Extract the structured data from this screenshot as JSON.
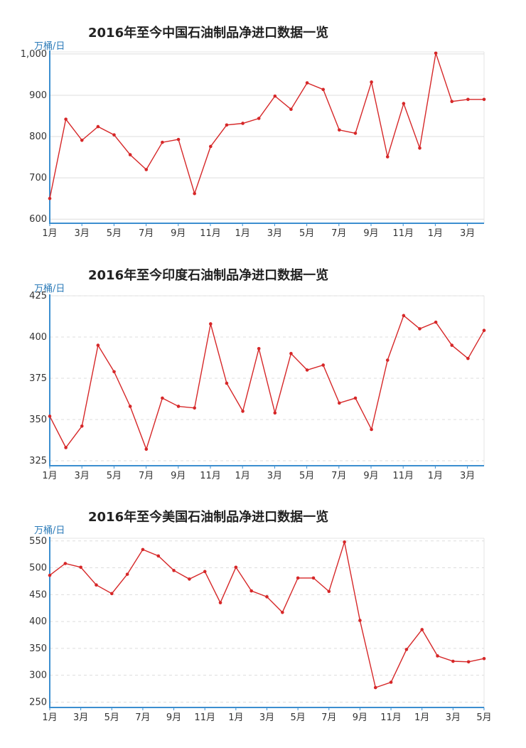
{
  "colors": {
    "line": "#d62728",
    "axis": "#3c8fd0",
    "grid": "#dddddd",
    "unit": "#2a7ab8"
  },
  "chart_data": [
    {
      "type": "line",
      "title": "2016年至今中国石油制品净进口数据一览",
      "ylabel": "万桶/日",
      "ylim": [
        590,
        1005
      ],
      "yticks": [
        600,
        700,
        800,
        900,
        1000
      ],
      "ytick_labels": [
        "600",
        "700",
        "800",
        "900",
        "1,000"
      ],
      "grid_style": "solid",
      "xtick_labels": [
        "1月",
        "3月",
        "5月",
        "7月",
        "9月",
        "11月",
        "1月",
        "3月",
        "5月",
        "7月",
        "9月",
        "11月",
        "1月",
        "3月"
      ],
      "values": [
        650,
        842,
        791,
        824,
        804,
        756,
        720,
        786,
        793,
        662,
        776,
        828,
        832,
        844,
        898,
        866,
        930,
        914,
        816,
        808,
        932,
        751,
        880,
        772,
        1002,
        885,
        890,
        890
      ]
    },
    {
      "type": "line",
      "title": "2016年至今印度石油制品净进口数据一览",
      "ylabel": "万桶/日",
      "ylim": [
        322,
        425
      ],
      "yticks": [
        325,
        350,
        375,
        400,
        425
      ],
      "ytick_labels": [
        "325",
        "350",
        "375",
        "400",
        "425"
      ],
      "grid_style": "dashed",
      "xtick_labels": [
        "1月",
        "3月",
        "5月",
        "7月",
        "9月",
        "11月",
        "1月",
        "3月",
        "5月",
        "7月",
        "9月",
        "11月",
        "1月",
        "3月"
      ],
      "values": [
        352,
        333,
        346,
        395,
        379,
        358,
        332,
        363,
        358,
        357,
        408,
        372,
        355,
        393,
        354,
        390,
        380,
        383,
        360,
        363,
        344,
        386,
        413,
        405,
        409,
        395,
        387,
        404
      ]
    },
    {
      "type": "line",
      "title": "2016年至今美国石油制品净进口数据一览",
      "ylabel": "万桶/日",
      "ylim": [
        240,
        555
      ],
      "yticks": [
        250,
        300,
        350,
        400,
        450,
        500,
        550
      ],
      "ytick_labels": [
        "250",
        "300",
        "350",
        "400",
        "450",
        "500",
        "550"
      ],
      "grid_style": "dashed",
      "xtick_labels": [
        "1月",
        "3月",
        "5月",
        "7月",
        "9月",
        "11月",
        "1月",
        "3月",
        "5月",
        "7月",
        "9月",
        "11月",
        "1月",
        "3月",
        "5月"
      ],
      "values": [
        486,
        508,
        501,
        468,
        452,
        488,
        534,
        522,
        495,
        479,
        493,
        435,
        501,
        457,
        446,
        417,
        481,
        481,
        456,
        548,
        402,
        277,
        287,
        348,
        385,
        336,
        326,
        325,
        331
      ]
    }
  ]
}
